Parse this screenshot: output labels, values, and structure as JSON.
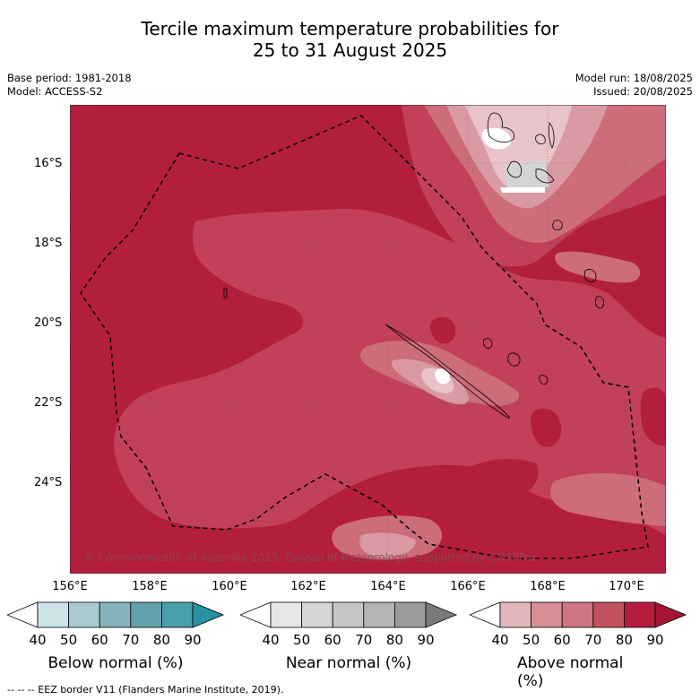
{
  "title_line1": "Tercile maximum temperature probabilities for",
  "title_line2": "25 to 31 August 2025",
  "meta_left": [
    "Base period: 1981-2018",
    "Model: ACCESS-S2"
  ],
  "meta_right": [
    "Model run: 18/08/2025",
    "Issued: 20/08/2025"
  ],
  "lat_labels": [
    "16°S",
    "18°S",
    "20°S",
    "22°S",
    "24°S"
  ],
  "lon_labels": [
    "156°E",
    "158°E",
    "160°E",
    "162°E",
    "164°E",
    "166°E",
    "168°E",
    "170°E"
  ],
  "copyright": "© Commonwealth of Australia 2025, Bureau of Meteorology, supported by COSPPac",
  "colorbars": [
    {
      "title": "Below normal (%)",
      "ticks": [
        "40",
        "50",
        "60",
        "70",
        "80",
        "90"
      ],
      "colors": [
        "#ffffff",
        "#cde3e7",
        "#a8cacf",
        "#86b2bb",
        "#62a0ad",
        "#4a9fad",
        "#2a90a3"
      ]
    },
    {
      "title": "Near normal (%)",
      "ticks": [
        "40",
        "50",
        "60",
        "70",
        "80",
        "90"
      ],
      "colors": [
        "#ffffff",
        "#e6e6e6",
        "#d6d6d6",
        "#c6c6c6",
        "#b4b4b4",
        "#9c9c9c",
        "#7a7a7a"
      ]
    },
    {
      "title": "Above normal (%)",
      "ticks": [
        "40",
        "50",
        "60",
        "70",
        "80",
        "90"
      ],
      "colors": [
        "#ffffff",
        "#e2b6bd",
        "#d78e97",
        "#cd7580",
        "#c2505f",
        "#b51d3c",
        "#a71535"
      ]
    }
  ],
  "palette": {
    "above_80": "#b21e3b",
    "above_70": "#c2405a",
    "above_60": "#cd6d7a",
    "above_50": "#d99aa3",
    "above_40": "#e8c3c9",
    "near_normal": "#d4d4d4",
    "below": "#ffffff"
  },
  "footer": "-- -- -- EEZ border V11 (Flanders Marine Institute, 2019)."
}
